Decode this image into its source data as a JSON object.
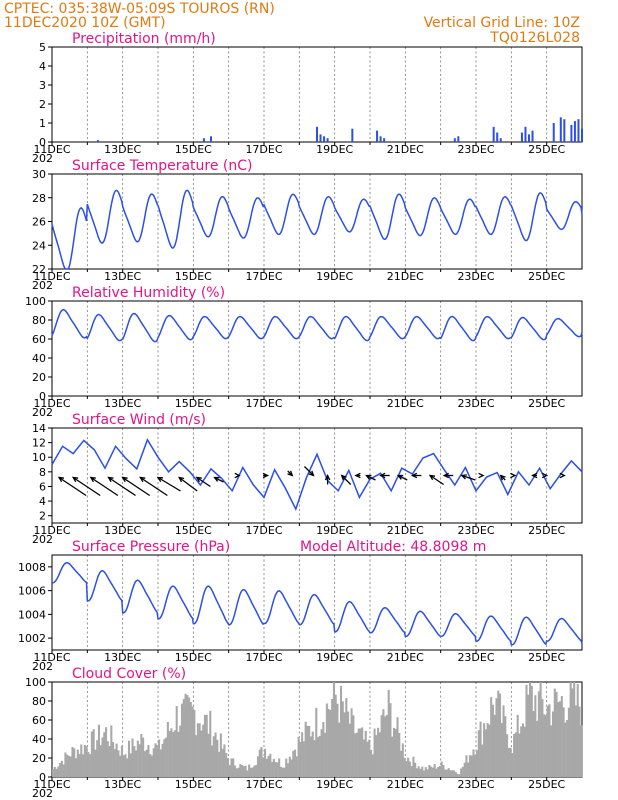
{
  "header": {
    "line1_left": "CPTEC:   035:38W-05:09S   TOUROS (RN)",
    "line2_left": "11DEC2020  10Z (GMT)",
    "line1_right": "Vertical Grid Line: 10Z",
    "line2_right": "TQ0126L028"
  },
  "colors": {
    "series": "#2b4fe8",
    "header": "#e07a10",
    "title": "#e0158a",
    "cloud": "#a8a8a8"
  },
  "x_ticks": [
    "11DEC",
    "13DEC",
    "15DEC",
    "17DEC",
    "19DEC",
    "21DEC",
    "23DEC",
    "25DEC"
  ],
  "x_year_fragment": "202",
  "chart_data": [
    {
      "type": "bar",
      "title": "Precipitation (mm/h)",
      "ylim": [
        0,
        5
      ],
      "yticks": [
        "0",
        "1",
        "2",
        "3",
        "4",
        "5"
      ],
      "x": [
        1.3,
        4.3,
        4.5,
        7.5,
        7.6,
        7.7,
        7.8,
        8.5,
        9.2,
        9.3,
        9.4,
        11.4,
        11.5,
        12.5,
        12.6,
        12.7,
        13.3,
        13.4,
        13.5,
        13.6,
        14.2,
        14.4,
        14.5,
        14.7,
        14.8,
        14.9,
        15.0
      ],
      "values": [
        0.1,
        0.2,
        0.3,
        0.8,
        0.4,
        0.3,
        0.2,
        0.7,
        0.6,
        0.3,
        0.2,
        0.2,
        0.3,
        0.8,
        0.5,
        0.2,
        0.5,
        0.8,
        0.4,
        0.6,
        1.0,
        1.3,
        1.2,
        0.9,
        1.1,
        1.2,
        0.7
      ],
      "grid": true
    },
    {
      "type": "line",
      "title": "Surface Temperature (nC)",
      "ylim": [
        22,
        30
      ],
      "yticks": [
        "22",
        "24",
        "26",
        "28",
        "30"
      ],
      "phase_day": 0.62,
      "base": [
        24.5,
        26.4,
        26.3,
        26.2,
        26.4,
        26.3,
        26.6,
        26.5,
        26.5,
        26.4,
        26.4,
        26.4,
        26.5,
        26.4,
        26.5,
        26.2
      ],
      "amp": [
        2.5,
        2.1,
        1.9,
        2.3,
        1.6,
        1.6,
        1.6,
        1.5,
        1.3,
        1.8,
        1.5,
        1.4,
        1.5,
        1.9,
        1.1,
        0.8
      ],
      "grid": true
    },
    {
      "type": "line",
      "title": "Relative Humidity (%)",
      "ylim": [
        0,
        100
      ],
      "yticks": [
        "0",
        "20",
        "40",
        "60",
        "80",
        "100"
      ],
      "phase_day": 0.12,
      "base": [
        76,
        72,
        72,
        72,
        72,
        72,
        72,
        72,
        71,
        72,
        72,
        71,
        72,
        71,
        72,
        73
      ],
      "amp": [
        14,
        13,
        14,
        12,
        11,
        11,
        11,
        11,
        12,
        11,
        11,
        12,
        11,
        11,
        9,
        7
      ],
      "grid": true
    },
    {
      "type": "line",
      "title": "Surface Wind (m/s)",
      "ylim": [
        1,
        14
      ],
      "yticks": [
        "2",
        "4",
        "6",
        "8",
        "10",
        "12",
        "14"
      ],
      "x": [
        0.0,
        0.3,
        0.6,
        0.9,
        1.2,
        1.5,
        1.8,
        2.1,
        2.4,
        2.7,
        3.0,
        3.3,
        3.6,
        3.9,
        4.2,
        4.5,
        4.8,
        5.1,
        5.4,
        5.7,
        6.0,
        6.3,
        6.6,
        6.9,
        7.2,
        7.5,
        7.8,
        8.1,
        8.4,
        8.7,
        9.0,
        9.3,
        9.6,
        9.9,
        10.2,
        10.5,
        10.8,
        11.1,
        11.4,
        11.7,
        12.0,
        12.3,
        12.6,
        12.9,
        13.2,
        13.5,
        13.8,
        14.1,
        14.4,
        14.7,
        15.0
      ],
      "values": [
        9,
        11.5,
        10.5,
        12.3,
        11,
        8.5,
        11.5,
        9.8,
        8.4,
        12.4,
        10,
        8,
        9.4,
        8,
        6.2,
        8.4,
        7.1,
        5.4,
        8.6,
        6.2,
        4.5,
        8.3,
        5.8,
        2.9,
        7.2,
        10.4,
        6.8,
        5.4,
        8.2,
        4.5,
        7.0,
        7.8,
        5.4,
        8.5,
        7.7,
        9.9,
        10.5,
        8.3,
        6.2,
        8.6,
        5.4,
        7.3,
        7.9,
        4.9,
        8.0,
        6.2,
        8.5,
        5.7,
        7.7,
        9.5,
        8.0
      ],
      "wind_barbs_x": [
        0.2,
        0.6,
        1.1,
        1.6,
        2.0,
        2.5,
        3.0,
        3.6,
        4.1,
        4.6,
        5.3,
        6.1,
        6.8,
        7.4,
        7.8,
        8.2,
        8.6,
        8.9,
        9.3,
        9.8,
        10.2,
        10.7,
        11.1,
        11.6,
        12.2,
        12.7,
        13.1,
        13.6,
        14.0,
        14.5
      ],
      "wind_barbs_dx": [
        6,
        6,
        6,
        6,
        6,
        6,
        5,
        4,
        3,
        2,
        0,
        -1,
        -1,
        -2,
        0,
        2,
        1,
        2,
        2,
        2,
        2,
        3,
        2,
        3,
        0,
        1,
        0,
        1,
        0,
        0
      ],
      "wind_barbs_dy": [
        -4,
        -4,
        -4,
        -4,
        -4,
        -4,
        -3,
        -3,
        -2,
        -1,
        0,
        0,
        1,
        2,
        -2,
        -2,
        0,
        -1,
        0,
        -1,
        0,
        -2,
        0,
        -1,
        0,
        -1,
        0,
        0,
        0,
        0
      ],
      "grid": true
    },
    {
      "type": "line",
      "title": "Surface Pressure (hPa)",
      "annotation": "Model Altitude: 48.8098  m",
      "ylim": [
        1001,
        1009
      ],
      "yticks": [
        "1002",
        "1004",
        "1006",
        "1008"
      ],
      "phase_day": 0.22,
      "base": [
        1007.5,
        1006.4,
        1005.5,
        1005.0,
        1004.8,
        1004.6,
        1004.6,
        1004.4,
        1003.8,
        1003.5,
        1003.2,
        1003.1,
        1002.8,
        1002.6,
        1002.7,
        1002.6
      ],
      "amp": [
        0.8,
        1.2,
        1.3,
        1.3,
        1.5,
        1.4,
        1.3,
        1.2,
        1.2,
        1.0,
        1.0,
        0.9,
        1.0,
        1.1,
        0.9,
        1.0
      ],
      "grid": true
    },
    {
      "type": "bar",
      "title": "Cloud Cover (%)",
      "ylim": [
        0,
        100
      ],
      "yticks": [
        "0",
        "20",
        "40",
        "60",
        "80",
        "100"
      ],
      "x": [
        0.0,
        0.5,
        1.0,
        1.5,
        2.0,
        2.5,
        3.0,
        3.5,
        4.0,
        4.5,
        5.0,
        5.5,
        6.0,
        6.5,
        7.0,
        7.5,
        8.0,
        8.5,
        9.0,
        9.5,
        10.0,
        10.5,
        11.0,
        11.5,
        12.0,
        12.5,
        13.0,
        13.5,
        14.0,
        14.5,
        15.0
      ],
      "values": [
        10,
        30,
        40,
        55,
        30,
        45,
        35,
        75,
        80,
        60,
        20,
        10,
        35,
        15,
        45,
        70,
        100,
        60,
        35,
        85,
        25,
        10,
        15,
        5,
        45,
        95,
        40,
        100,
        85,
        95,
        90
      ],
      "grid": true
    }
  ]
}
